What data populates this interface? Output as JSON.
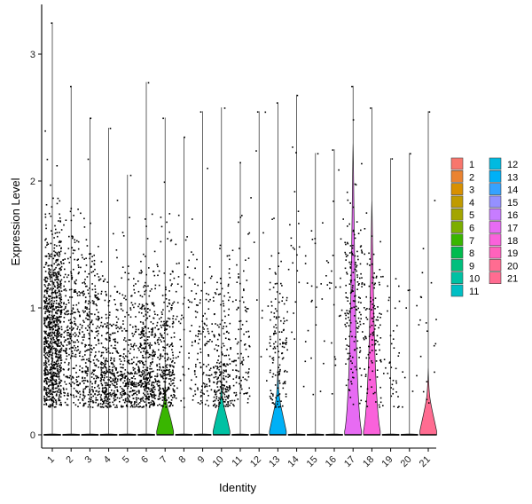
{
  "chart_data": {
    "type": "violin",
    "xlabel": "Identity",
    "ylabel": "Expression Level",
    "ylim": [
      -0.15,
      3.35
    ],
    "yticks": [
      0,
      1,
      2,
      3
    ],
    "grid": false,
    "legend_position": "right",
    "legend_columns": 2,
    "categories": [
      "1",
      "2",
      "3",
      "4",
      "5",
      "6",
      "7",
      "8",
      "9",
      "10",
      "11",
      "12",
      "13",
      "14",
      "15",
      "16",
      "17",
      "18",
      "19",
      "20",
      "21"
    ],
    "colors": [
      "#F8766D",
      "#EA8331",
      "#D89000",
      "#C09B00",
      "#A3A500",
      "#7CAE00",
      "#39B600",
      "#00BB4E",
      "#00BF7D",
      "#00C1A3",
      "#00BFC4",
      "#00BAE0",
      "#00B0F6",
      "#35A2FF",
      "#9590FF",
      "#C77CFF",
      "#E76BF3",
      "#FA62DB",
      "#FF62BC",
      "#FF6C91",
      "#FF6C91"
    ],
    "series": [
      {
        "name": "1",
        "max": 3.25,
        "nonzero_points": 900,
        "density_center": 0.8,
        "violin_peak": 0.0
      },
      {
        "name": "2",
        "max": 2.75,
        "nonzero_points": 280,
        "density_center": 0.8,
        "violin_peak": 0.0
      },
      {
        "name": "3",
        "max": 2.5,
        "nonzero_points": 300,
        "density_center": 0.7,
        "violin_peak": 0.0
      },
      {
        "name": "4",
        "max": 2.42,
        "nonzero_points": 320,
        "density_center": 0.45,
        "violin_peak": 0.0
      },
      {
        "name": "5",
        "max": 2.05,
        "nonzero_points": 260,
        "density_center": 0.4,
        "violin_peak": 0.0
      },
      {
        "name": "6",
        "max": 2.78,
        "nonzero_points": 380,
        "density_center": 0.55,
        "violin_peak": 0.0
      },
      {
        "name": "7",
        "max": 2.5,
        "nonzero_points": 300,
        "density_center": 0.5,
        "violin_peak": 0.1
      },
      {
        "name": "8",
        "max": 2.35,
        "nonzero_points": 60,
        "density_center": 1.0,
        "violin_peak": 0.0
      },
      {
        "name": "9",
        "max": 2.55,
        "nonzero_points": 120,
        "density_center": 0.6,
        "violin_peak": 0.0
      },
      {
        "name": "10",
        "max": 2.58,
        "nonzero_points": 220,
        "density_center": 0.5,
        "violin_peak": 0.12
      },
      {
        "name": "11",
        "max": 2.15,
        "nonzero_points": 110,
        "density_center": 0.7,
        "violin_peak": 0.0
      },
      {
        "name": "12",
        "max": 2.55,
        "nonzero_points": 12,
        "density_center": 1.2,
        "violin_peak": 0.0
      },
      {
        "name": "13",
        "max": 2.62,
        "nonzero_points": 140,
        "density_center": 0.7,
        "violin_peak": 0.18
      },
      {
        "name": "14",
        "max": 2.68,
        "nonzero_points": 25,
        "density_center": 1.3,
        "violin_peak": 0.0
      },
      {
        "name": "15",
        "max": 2.22,
        "nonzero_points": 20,
        "density_center": 1.0,
        "violin_peak": 0.0
      },
      {
        "name": "16",
        "max": 2.25,
        "nonzero_points": 25,
        "density_center": 1.1,
        "violin_peak": 0.0
      },
      {
        "name": "17",
        "max": 2.75,
        "nonzero_points": 180,
        "density_center": 1.1,
        "violin_peak": 0.25
      },
      {
        "name": "18",
        "max": 2.58,
        "nonzero_points": 120,
        "density_center": 0.8,
        "violin_peak": 0.25
      },
      {
        "name": "19",
        "max": 2.18,
        "nonzero_points": 40,
        "density_center": 0.7,
        "violin_peak": 0.0
      },
      {
        "name": "20",
        "max": 2.22,
        "nonzero_points": 10,
        "density_center": 0.9,
        "violin_peak": 0.0
      },
      {
        "name": "21",
        "max": 2.55,
        "nonzero_points": 18,
        "density_center": 0.6,
        "violin_peak": 0.18
      }
    ]
  }
}
